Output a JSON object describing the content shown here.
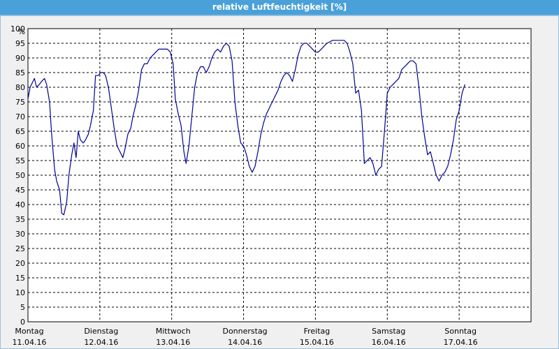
{
  "chart_data": {
    "type": "line",
    "title": "relative Luftfeuchtigkeit [%]",
    "ylabel": "%",
    "ylim": [
      0,
      100
    ],
    "yticks": [
      0,
      5,
      10,
      15,
      20,
      25,
      30,
      35,
      40,
      45,
      50,
      55,
      60,
      65,
      70,
      75,
      80,
      85,
      90,
      95,
      100
    ],
    "xlim": [
      0,
      7
    ],
    "day_labels": [
      {
        "day": "Montag",
        "date": "11.04.16"
      },
      {
        "day": "Dienstag",
        "date": "12.04.16"
      },
      {
        "day": "Mittwoch",
        "date": "13.04.16"
      },
      {
        "day": "Donnerstag",
        "date": "14.04.16"
      },
      {
        "day": "Freitag",
        "date": "15.04.16"
      },
      {
        "day": "Samstag",
        "date": "16.04.16"
      },
      {
        "day": "Sonntag",
        "date": "17.04.16"
      }
    ],
    "grid": true,
    "series": [
      {
        "color": "#000099",
        "points": [
          [
            0.0,
            76
          ],
          [
            0.03,
            80
          ],
          [
            0.07,
            82
          ],
          [
            0.09,
            83
          ],
          [
            0.12,
            80
          ],
          [
            0.16,
            81
          ],
          [
            0.19,
            82
          ],
          [
            0.23,
            83
          ],
          [
            0.26,
            81
          ],
          [
            0.3,
            75
          ],
          [
            0.33,
            64
          ],
          [
            0.37,
            52
          ],
          [
            0.4,
            48
          ],
          [
            0.44,
            45
          ],
          [
            0.47,
            37
          ],
          [
            0.5,
            36.5
          ],
          [
            0.54,
            41
          ],
          [
            0.57,
            50
          ],
          [
            0.61,
            57
          ],
          [
            0.64,
            61
          ],
          [
            0.67,
            56
          ],
          [
            0.7,
            65
          ],
          [
            0.73,
            62
          ],
          [
            0.77,
            61
          ],
          [
            0.8,
            62
          ],
          [
            0.84,
            64
          ],
          [
            0.87,
            67
          ],
          [
            0.91,
            72
          ],
          [
            0.94,
            84
          ],
          [
            0.98,
            84
          ],
          [
            1.01,
            85
          ],
          [
            1.05,
            85
          ],
          [
            1.08,
            84
          ],
          [
            1.12,
            80
          ],
          [
            1.16,
            73
          ],
          [
            1.2,
            66
          ],
          [
            1.24,
            60
          ],
          [
            1.28,
            58
          ],
          [
            1.32,
            56
          ],
          [
            1.35,
            59
          ],
          [
            1.39,
            64
          ],
          [
            1.43,
            66
          ],
          [
            1.46,
            70
          ],
          [
            1.5,
            74
          ],
          [
            1.54,
            79
          ],
          [
            1.58,
            86
          ],
          [
            1.62,
            88
          ],
          [
            1.66,
            88
          ],
          [
            1.7,
            90
          ],
          [
            1.74,
            91
          ],
          [
            1.78,
            92
          ],
          [
            1.82,
            93
          ],
          [
            1.86,
            93
          ],
          [
            1.9,
            93
          ],
          [
            1.94,
            93
          ],
          [
            1.98,
            92
          ],
          [
            2.02,
            88
          ],
          [
            2.05,
            76
          ],
          [
            2.09,
            71
          ],
          [
            2.13,
            67
          ],
          [
            2.17,
            58
          ],
          [
            2.2,
            54
          ],
          [
            2.24,
            60
          ],
          [
            2.28,
            70
          ],
          [
            2.32,
            80
          ],
          [
            2.36,
            85
          ],
          [
            2.4,
            87
          ],
          [
            2.44,
            87
          ],
          [
            2.48,
            85
          ],
          [
            2.52,
            87
          ],
          [
            2.56,
            90
          ],
          [
            2.6,
            92
          ],
          [
            2.64,
            93
          ],
          [
            2.68,
            92
          ],
          [
            2.72,
            94
          ],
          [
            2.76,
            95
          ],
          [
            2.8,
            94
          ],
          [
            2.84,
            89
          ],
          [
            2.88,
            75
          ],
          [
            2.92,
            67
          ],
          [
            2.96,
            61
          ],
          [
            3.0,
            60
          ],
          [
            3.04,
            57
          ],
          [
            3.08,
            53
          ],
          [
            3.12,
            51
          ],
          [
            3.16,
            53
          ],
          [
            3.2,
            58
          ],
          [
            3.24,
            64
          ],
          [
            3.28,
            68
          ],
          [
            3.32,
            71
          ],
          [
            3.36,
            73
          ],
          [
            3.4,
            75
          ],
          [
            3.44,
            77
          ],
          [
            3.48,
            79
          ],
          [
            3.52,
            82
          ],
          [
            3.56,
            84
          ],
          [
            3.6,
            85
          ],
          [
            3.64,
            84
          ],
          [
            3.68,
            82
          ],
          [
            3.72,
            86
          ],
          [
            3.76,
            91
          ],
          [
            3.8,
            94
          ],
          [
            3.84,
            95
          ],
          [
            3.88,
            95
          ],
          [
            3.92,
            94
          ],
          [
            3.96,
            93
          ],
          [
            4.0,
            92
          ],
          [
            4.04,
            92
          ],
          [
            4.08,
            93
          ],
          [
            4.12,
            94
          ],
          [
            4.16,
            95
          ],
          [
            4.2,
            95.5
          ],
          [
            4.24,
            96
          ],
          [
            4.28,
            96
          ],
          [
            4.32,
            96
          ],
          [
            4.36,
            96
          ],
          [
            4.4,
            96
          ],
          [
            4.44,
            95
          ],
          [
            4.48,
            92
          ],
          [
            4.52,
            88
          ],
          [
            4.56,
            78
          ],
          [
            4.6,
            79
          ],
          [
            4.64,
            72
          ],
          [
            4.68,
            54
          ],
          [
            4.72,
            55
          ],
          [
            4.76,
            56
          ],
          [
            4.8,
            54
          ],
          [
            4.84,
            50
          ],
          [
            4.88,
            52
          ],
          [
            4.92,
            53
          ],
          [
            4.96,
            65
          ],
          [
            5.0,
            78
          ],
          [
            5.04,
            80
          ],
          [
            5.08,
            81
          ],
          [
            5.12,
            82
          ],
          [
            5.16,
            83
          ],
          [
            5.2,
            86
          ],
          [
            5.24,
            87
          ],
          [
            5.28,
            88
          ],
          [
            5.32,
            89
          ],
          [
            5.36,
            89
          ],
          [
            5.4,
            88
          ],
          [
            5.44,
            80
          ],
          [
            5.48,
            70
          ],
          [
            5.52,
            63
          ],
          [
            5.56,
            57
          ],
          [
            5.6,
            58
          ],
          [
            5.64,
            54
          ],
          [
            5.68,
            50
          ],
          [
            5.72,
            48
          ],
          [
            5.76,
            50
          ],
          [
            5.8,
            51
          ],
          [
            5.84,
            53
          ],
          [
            5.88,
            57
          ],
          [
            5.92,
            62
          ],
          [
            5.96,
            69
          ],
          [
            6.0,
            72
          ],
          [
            6.04,
            78
          ],
          [
            6.08,
            81
          ]
        ]
      }
    ]
  }
}
